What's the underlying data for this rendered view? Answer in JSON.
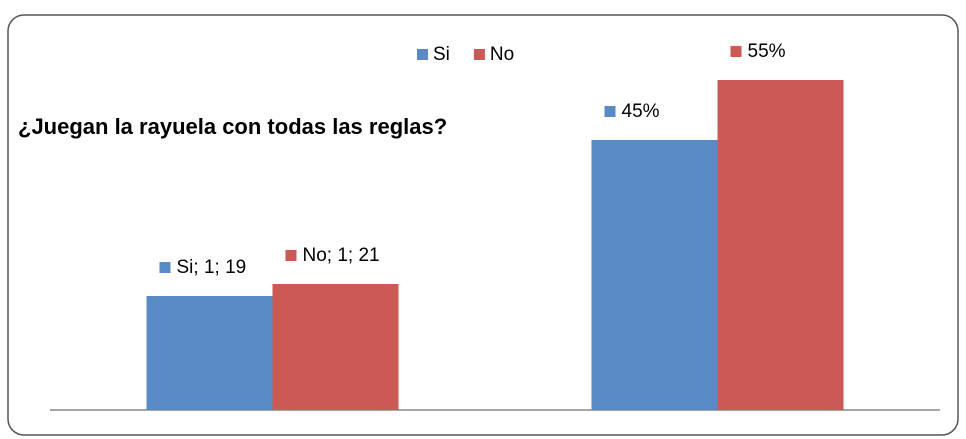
{
  "chart_data": {
    "type": "bar",
    "title": "¿Juegan la rayuela con todas las reglas?",
    "categories": [
      null,
      null
    ],
    "series": [
      {
        "name": "Si",
        "color": "#5a8ac6",
        "values": [
          19,
          45
        ],
        "value_labels": [
          "Si; 1; 19",
          "45%"
        ]
      },
      {
        "name": "No",
        "color": "#cb5a56",
        "values": [
          21,
          55
        ],
        "value_labels": [
          "No; 1; 21",
          "55%"
        ]
      }
    ],
    "ylim": [
      0,
      60
    ]
  }
}
